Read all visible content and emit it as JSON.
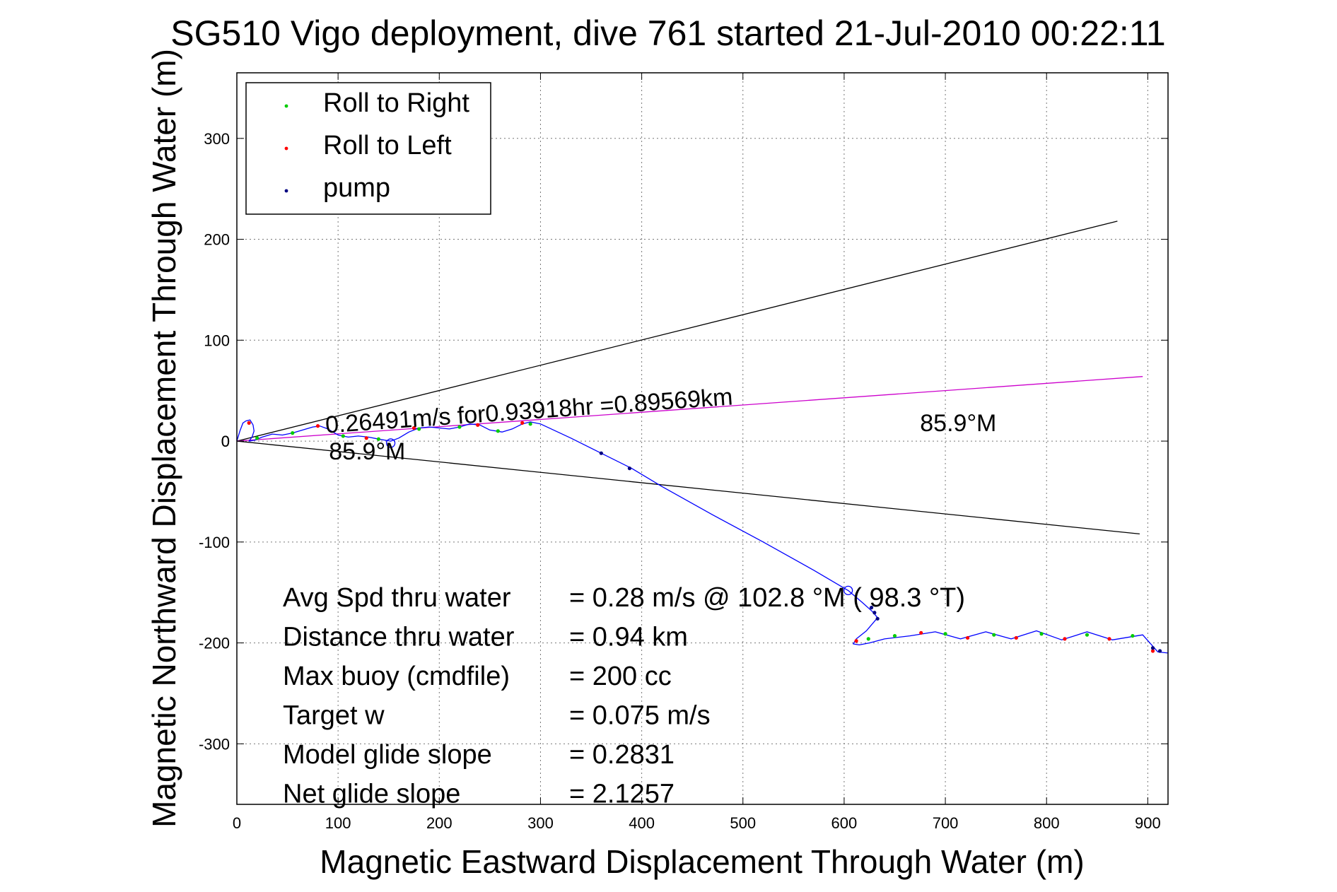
{
  "chart_data": {
    "type": "line",
    "title": "SG510 Vigo deployment, dive 761 started 21-Jul-2010 00:22:11",
    "xlabel": "Magnetic Eastward Displacement Through Water (m)",
    "ylabel": "Magnetic Northward Displacement Through Water (m)",
    "xlim": [
      0,
      920
    ],
    "ylim": [
      -360,
      365
    ],
    "xticks": [
      0,
      100,
      200,
      300,
      400,
      500,
      600,
      700,
      800,
      900
    ],
    "yticks": [
      -300,
      -200,
      -100,
      0,
      100,
      200,
      300
    ],
    "grid": true,
    "legend_position": "top-left",
    "legend": [
      {
        "label": "Roll to Right",
        "color": "#00cc00"
      },
      {
        "label": "Roll to Left",
        "color": "#ff0000"
      },
      {
        "label": "pump",
        "color": "#000080"
      }
    ],
    "bearing_lines": [
      {
        "name": "upper bound",
        "color": "#000000",
        "x": [
          0,
          870
        ],
        "y": [
          0,
          218
        ]
      },
      {
        "name": "lower bound",
        "color": "#000000",
        "x": [
          0,
          892
        ],
        "y": [
          0,
          -92
        ]
      },
      {
        "name": "course",
        "color": "#cc00cc",
        "x": [
          0,
          895
        ],
        "y": [
          0,
          64
        ]
      }
    ],
    "track": {
      "color": "#0000ff",
      "x": [
        0,
        3,
        6,
        9,
        13,
        16,
        17,
        15,
        12,
        18,
        25,
        35,
        45,
        55,
        65,
        75,
        82,
        90,
        100,
        110,
        120,
        130,
        140,
        152,
        160,
        170,
        180,
        190,
        200,
        210,
        220,
        230,
        240,
        250,
        262,
        272,
        282,
        290,
        300,
        330,
        360,
        390,
        420,
        470,
        520,
        570,
        604,
        618,
        628,
        633,
        622,
        612,
        609,
        615,
        625,
        640,
        665,
        690,
        715,
        740,
        765,
        790,
        815,
        840,
        865,
        895,
        910,
        920
      ],
      "y": [
        0,
        10,
        18,
        20,
        21,
        16,
        10,
        4,
        0,
        1,
        4,
        7,
        6,
        8,
        11,
        14,
        15,
        12,
        6,
        4,
        5,
        4,
        2,
        0,
        3,
        9,
        13,
        14,
        13,
        12,
        14,
        17,
        16,
        11,
        9,
        12,
        17,
        19,
        17,
        3,
        -12,
        -27,
        -45,
        -73,
        -100,
        -128,
        -148,
        -160,
        -169,
        -175,
        -188,
        -196,
        -201,
        -202,
        -200,
        -196,
        -193,
        -189,
        -196,
        -189,
        -196,
        -188,
        -197,
        -189,
        -197,
        -192,
        -209,
        -210
      ]
    },
    "roll_right_points": {
      "color": "#00cc00",
      "x": [
        20,
        55,
        105,
        140,
        180,
        220,
        258,
        290,
        624,
        650,
        700,
        748,
        795,
        840,
        885
      ],
      "y": [
        3,
        8,
        5,
        2,
        12,
        14,
        10,
        17,
        -196,
        -193,
        -191,
        -192,
        -191,
        -192,
        -193
      ]
    },
    "roll_left_points": {
      "color": "#ff0000",
      "x": [
        12,
        80,
        128,
        175,
        238,
        282,
        612,
        676,
        722,
        770,
        818,
        862,
        905
      ],
      "y": [
        18,
        15,
        3,
        13,
        16,
        18,
        -198,
        -190,
        -195,
        -195,
        -196,
        -196,
        -208
      ]
    },
    "pump_points": {
      "color": "#000080",
      "x": [
        360,
        388,
        627,
        630,
        633,
        905,
        912
      ],
      "y": [
        -12,
        -27,
        -165,
        -170,
        -176,
        -205,
        -208
      ]
    },
    "circle_markers": [
      {
        "x": 152,
        "y": -2
      },
      {
        "x": 604,
        "y": -148
      }
    ],
    "annotations": [
      {
        "text": "0.26491m/s for0.93918hr =0.89569km",
        "x": 88,
        "y": 8,
        "rotate": -4
      },
      {
        "text": "85.9°M",
        "x": 91,
        "y": -18,
        "rotate": 0
      },
      {
        "text": "85.9°M",
        "x": 675,
        "y": 10,
        "rotate": 0
      }
    ],
    "stats": [
      {
        "label": "Avg Spd thru water",
        "value": "=  0.28 m/s @ 102.8 °M ( 98.3 °T)"
      },
      {
        "label": "Distance thru water",
        "value": "=  0.94 km"
      },
      {
        "label": "Max buoy (cmdfile)",
        "value": "= 200 cc"
      },
      {
        "label": "Target w",
        "value": "= 0.075 m/s"
      },
      {
        "label": "Model glide slope",
        "value": "= 0.2831"
      },
      {
        "label": "Net glide slope",
        "value": "= 2.1257"
      }
    ]
  }
}
